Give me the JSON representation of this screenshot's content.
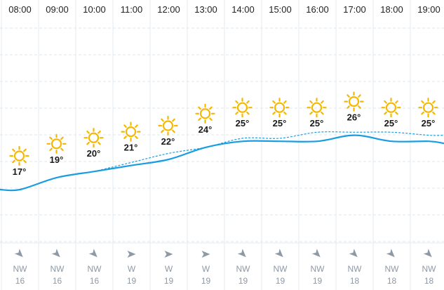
{
  "forecast": {
    "hours": [
      {
        "time": "08:00",
        "temp_label": "17°",
        "temp": 17,
        "feels": 17,
        "icon": "sun-icon",
        "wind_dir": "NW",
        "wind_speed": "16",
        "wind_bearing": 315
      },
      {
        "time": "09:00",
        "temp_label": "19°",
        "temp": 19,
        "feels": 19,
        "icon": "sun-icon",
        "wind_dir": "NW",
        "wind_speed": "16",
        "wind_bearing": 315
      },
      {
        "time": "10:00",
        "temp_label": "20°",
        "temp": 20,
        "feels": 20,
        "icon": "sun-icon",
        "wind_dir": "NW",
        "wind_speed": "16",
        "wind_bearing": 315
      },
      {
        "time": "11:00",
        "temp_label": "21°",
        "temp": 21,
        "feels": 21.5,
        "icon": "sun-icon",
        "wind_dir": "W",
        "wind_speed": "19",
        "wind_bearing": 270
      },
      {
        "time": "12:00",
        "temp_label": "22°",
        "temp": 22,
        "feels": 23,
        "icon": "sun-icon",
        "wind_dir": "W",
        "wind_speed": "19",
        "wind_bearing": 270
      },
      {
        "time": "13:00",
        "temp_label": "24°",
        "temp": 24,
        "feels": 24,
        "icon": "sun-icon",
        "wind_dir": "W",
        "wind_speed": "19",
        "wind_bearing": 270
      },
      {
        "time": "14:00",
        "temp_label": "25°",
        "temp": 25,
        "feels": 25.5,
        "icon": "sun-icon",
        "wind_dir": "NW",
        "wind_speed": "19",
        "wind_bearing": 315
      },
      {
        "time": "15:00",
        "temp_label": "25°",
        "temp": 25,
        "feels": 25.5,
        "icon": "sun-icon",
        "wind_dir": "NW",
        "wind_speed": "19",
        "wind_bearing": 315
      },
      {
        "time": "16:00",
        "temp_label": "25°",
        "temp": 25,
        "feels": 26.5,
        "icon": "sun-icon",
        "wind_dir": "NW",
        "wind_speed": "19",
        "wind_bearing": 315
      },
      {
        "time": "17:00",
        "temp_label": "26°",
        "temp": 26,
        "feels": 26.5,
        "icon": "sun-icon",
        "wind_dir": "NW",
        "wind_speed": "18",
        "wind_bearing": 315
      },
      {
        "time": "18:00",
        "temp_label": "25°",
        "temp": 25,
        "feels": 26.5,
        "icon": "sun-icon",
        "wind_dir": "NW",
        "wind_speed": "18",
        "wind_bearing": 315
      },
      {
        "time": "19:00",
        "temp_label": "25°",
        "temp": 25,
        "feels": 26,
        "icon": "sun-icon",
        "wind_dir": "NW",
        "wind_speed": "18",
        "wind_bearing": 315
      }
    ]
  },
  "colors": {
    "temp_line": "#1a9de0",
    "feels_line": "#1a9de0",
    "sun": "#f5b800",
    "grid": "#e6ebf0",
    "grid_dashed": "#e1e7ed",
    "wind_arrow": "#8e99a6"
  }
}
